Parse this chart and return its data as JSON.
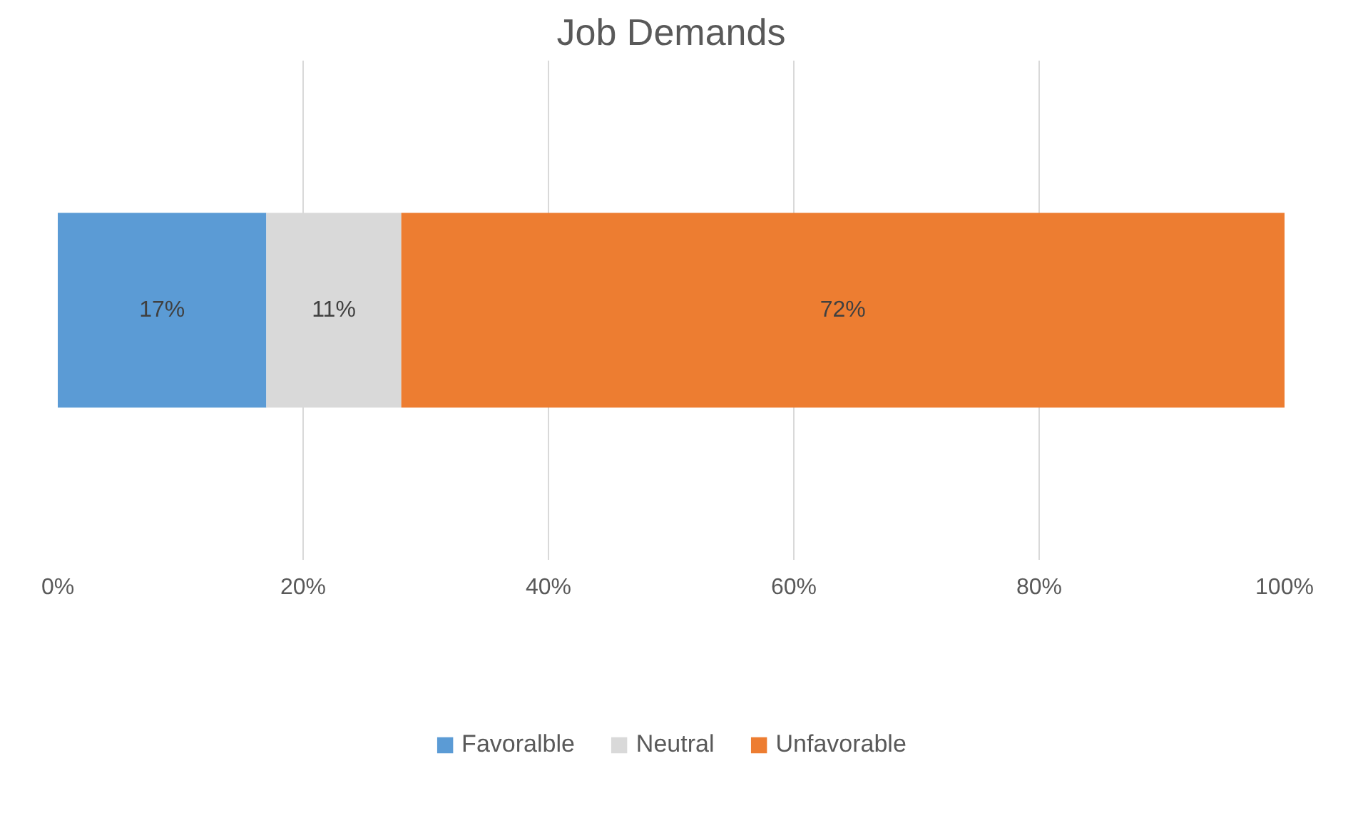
{
  "chart_data": {
    "type": "bar",
    "title": "Job Demands",
    "orientation": "horizontal",
    "stacked": true,
    "categories": [
      null
    ],
    "series": [
      {
        "name": "Favoralble",
        "color": "#5b9bd5",
        "values": [
          17
        ],
        "value_labels": [
          "17%"
        ]
      },
      {
        "name": "Neutral",
        "color": "#d9d9d9",
        "values": [
          11
        ],
        "value_labels": [
          "11%"
        ]
      },
      {
        "name": "Unfavorable",
        "color": "#ed7d31",
        "values": [
          72
        ],
        "value_labels": [
          "72%"
        ]
      }
    ],
    "xlim": [
      0,
      100
    ],
    "xticks": [
      {
        "value": 0,
        "label": "0%"
      },
      {
        "value": 20,
        "label": "20%"
      },
      {
        "value": 40,
        "label": "40%"
      },
      {
        "value": 60,
        "label": "60%"
      },
      {
        "value": 80,
        "label": "80%"
      },
      {
        "value": 100,
        "label": "100%"
      }
    ],
    "grid": "x",
    "legend": "bottom"
  }
}
